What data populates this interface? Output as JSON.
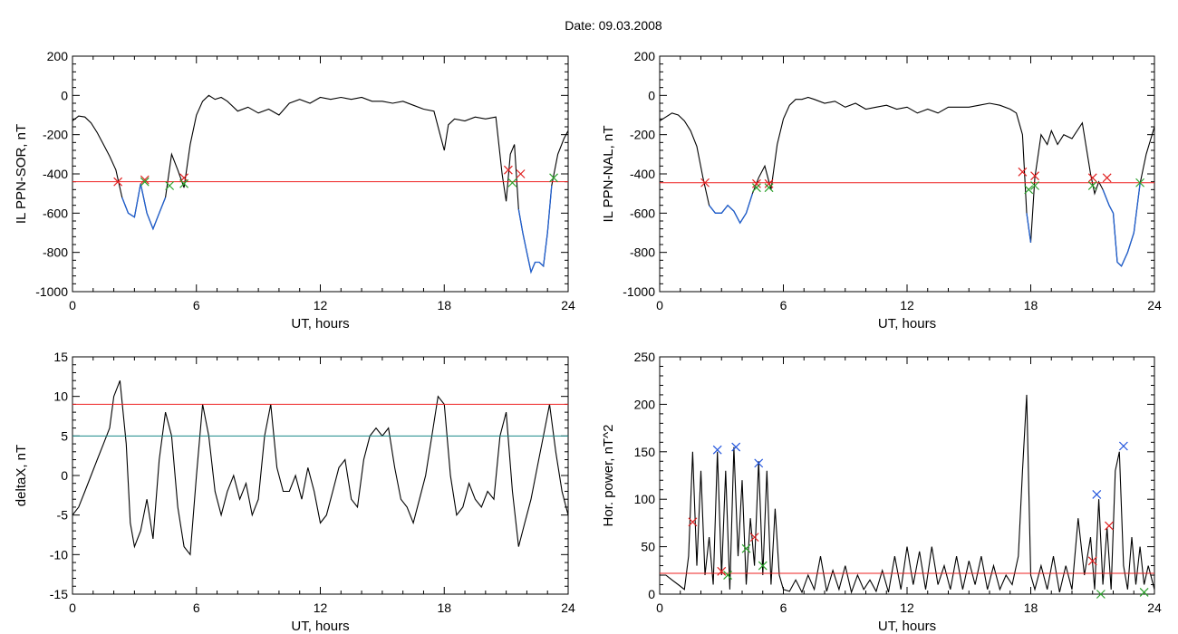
{
  "figure_title": "Date:  09.03.2008",
  "colors": {
    "axis": "#000000",
    "threshold_red": "#ee2222",
    "threshold_teal": "#1a8a8a",
    "highlight_blue": "#1f5fd0",
    "marker_red": "#e02020",
    "marker_green": "#2aa02a",
    "marker_blue": "#2255dd"
  },
  "chart_data": [
    {
      "id": "il-sor",
      "type": "line",
      "xlabel": "UT, hours",
      "ylabel": "IL PPN-SOR, nT",
      "xlim": [
        0,
        24
      ],
      "ylim": [
        -1000,
        200
      ],
      "xticks": [
        0,
        6,
        12,
        18,
        24
      ],
      "yticks": [
        -1000,
        -800,
        -600,
        -400,
        -200,
        0,
        200
      ],
      "threshold": {
        "y": -440,
        "color": "red"
      },
      "below_threshold_color": "blue",
      "series": [
        {
          "x": [
            0,
            0.3,
            0.6,
            0.9,
            1.2,
            1.5,
            1.8,
            2.1,
            2.4,
            2.7,
            3.0,
            3.3,
            3.6,
            3.9,
            4.2,
            4.5,
            4.8,
            5.1,
            5.4,
            5.7,
            6.0,
            6.3,
            6.6,
            6.9,
            7.2,
            7.5,
            8.0,
            8.5,
            9.0,
            9.5,
            10.0,
            10.5,
            11.0,
            11.5,
            12.0,
            12.5,
            13.0,
            13.5,
            14.0,
            14.5,
            15.0,
            15.5,
            16.0,
            16.5,
            17.0,
            17.5,
            17.8,
            18.0,
            18.2,
            18.5,
            19.0,
            19.5,
            20.0,
            20.5,
            20.8,
            21.0,
            21.2,
            21.4,
            21.6,
            21.8,
            22.0,
            22.2,
            22.4,
            22.6,
            22.8,
            23.0,
            23.2,
            23.5,
            23.8,
            24.0
          ],
          "y": [
            -130,
            -105,
            -110,
            -140,
            -190,
            -250,
            -310,
            -380,
            -520,
            -600,
            -620,
            -450,
            -600,
            -680,
            -600,
            -520,
            -300,
            -380,
            -470,
            -250,
            -100,
            -30,
            0,
            -20,
            -10,
            -30,
            -80,
            -60,
            -90,
            -70,
            -100,
            -40,
            -20,
            -40,
            -10,
            -20,
            -10,
            -20,
            -10,
            -30,
            -30,
            -40,
            -30,
            -50,
            -70,
            -80,
            -200,
            -280,
            -150,
            -120,
            -130,
            -110,
            -120,
            -110,
            -400,
            -540,
            -300,
            -250,
            -580,
            -700,
            -800,
            -900,
            -850,
            -850,
            -870,
            -700,
            -460,
            -300,
            -220,
            -180
          ]
        }
      ],
      "markers": [
        {
          "x": 2.2,
          "y": -440,
          "color": "red"
        },
        {
          "x": 3.5,
          "y": -430,
          "color": "red"
        },
        {
          "x": 3.5,
          "y": -440,
          "color": "green"
        },
        {
          "x": 4.7,
          "y": -460,
          "color": "green"
        },
        {
          "x": 5.4,
          "y": -420,
          "color": "red"
        },
        {
          "x": 5.4,
          "y": -450,
          "color": "green"
        },
        {
          "x": 21.1,
          "y": -380,
          "color": "red"
        },
        {
          "x": 21.3,
          "y": -445,
          "color": "green"
        },
        {
          "x": 21.7,
          "y": -400,
          "color": "red"
        },
        {
          "x": 23.3,
          "y": -420,
          "color": "green"
        }
      ]
    },
    {
      "id": "il-nal",
      "type": "line",
      "xlabel": "UT, hours",
      "ylabel": "IL PPN-NAL, nT",
      "xlim": [
        0,
        24
      ],
      "ylim": [
        -1000,
        200
      ],
      "xticks": [
        0,
        6,
        12,
        18,
        24
      ],
      "yticks": [
        -1000,
        -800,
        -600,
        -400,
        -200,
        0,
        200
      ],
      "threshold": {
        "y": -445,
        "color": "red"
      },
      "below_threshold_color": "blue",
      "series": [
        {
          "x": [
            0,
            0.3,
            0.6,
            0.9,
            1.2,
            1.5,
            1.8,
            2.1,
            2.4,
            2.7,
            3.0,
            3.3,
            3.6,
            3.9,
            4.2,
            4.5,
            4.8,
            5.1,
            5.4,
            5.7,
            6.0,
            6.3,
            6.6,
            6.9,
            7.2,
            7.5,
            8.0,
            8.5,
            9.0,
            9.5,
            10.0,
            10.5,
            11.0,
            11.5,
            12.0,
            12.5,
            13.0,
            13.5,
            14.0,
            14.5,
            15.0,
            15.5,
            16.0,
            16.5,
            17.0,
            17.3,
            17.6,
            17.8,
            18.0,
            18.2,
            18.5,
            18.8,
            19.0,
            19.3,
            19.6,
            20.0,
            20.5,
            20.9,
            21.1,
            21.3,
            21.5,
            21.8,
            22.0,
            22.2,
            22.4,
            22.7,
            23.0,
            23.3,
            23.6,
            24.0
          ],
          "y": [
            -130,
            -110,
            -90,
            -100,
            -130,
            -180,
            -260,
            -420,
            -560,
            -600,
            -600,
            -560,
            -590,
            -650,
            -600,
            -500,
            -420,
            -360,
            -480,
            -250,
            -120,
            -50,
            -20,
            -20,
            -10,
            -20,
            -40,
            -30,
            -60,
            -40,
            -70,
            -60,
            -50,
            -70,
            -60,
            -90,
            -70,
            -90,
            -60,
            -60,
            -60,
            -50,
            -40,
            -50,
            -70,
            -90,
            -200,
            -600,
            -750,
            -420,
            -200,
            -250,
            -180,
            -250,
            -200,
            -220,
            -140,
            -400,
            -500,
            -440,
            -480,
            -560,
            -600,
            -850,
            -870,
            -800,
            -700,
            -450,
            -300,
            -160
          ]
        }
      ],
      "markers": [
        {
          "x": 2.2,
          "y": -445,
          "color": "red"
        },
        {
          "x": 4.7,
          "y": -450,
          "color": "red"
        },
        {
          "x": 4.7,
          "y": -470,
          "color": "green"
        },
        {
          "x": 5.3,
          "y": -450,
          "color": "red"
        },
        {
          "x": 5.3,
          "y": -470,
          "color": "green"
        },
        {
          "x": 17.6,
          "y": -390,
          "color": "red"
        },
        {
          "x": 17.9,
          "y": -480,
          "color": "green"
        },
        {
          "x": 18.2,
          "y": -410,
          "color": "red"
        },
        {
          "x": 18.2,
          "y": -460,
          "color": "green"
        },
        {
          "x": 21.0,
          "y": -420,
          "color": "red"
        },
        {
          "x": 21.0,
          "y": -460,
          "color": "green"
        },
        {
          "x": 21.7,
          "y": -420,
          "color": "red"
        },
        {
          "x": 23.3,
          "y": -445,
          "color": "green"
        }
      ]
    },
    {
      "id": "deltax",
      "type": "line",
      "xlabel": "UT, hours",
      "ylabel": "deltaX, nT",
      "xlim": [
        0,
        24
      ],
      "ylim": [
        -15,
        15
      ],
      "xticks": [
        0,
        6,
        12,
        18,
        24
      ],
      "yticks": [
        -15,
        -10,
        -5,
        0,
        5,
        10,
        15
      ],
      "hlines": [
        {
          "y": 9,
          "color": "red"
        },
        {
          "y": 5,
          "color": "teal"
        }
      ],
      "series": [
        {
          "x": [
            0,
            0.3,
            0.6,
            0.9,
            1.2,
            1.5,
            1.8,
            2.0,
            2.3,
            2.6,
            2.8,
            3.0,
            3.3,
            3.6,
            3.9,
            4.2,
            4.5,
            4.8,
            5.1,
            5.4,
            5.7,
            6.0,
            6.3,
            6.6,
            6.9,
            7.2,
            7.5,
            7.8,
            8.1,
            8.4,
            8.7,
            9.0,
            9.3,
            9.6,
            9.9,
            10.2,
            10.5,
            10.8,
            11.1,
            11.4,
            11.7,
            12.0,
            12.3,
            12.6,
            12.9,
            13.2,
            13.5,
            13.8,
            14.1,
            14.4,
            14.7,
            15.0,
            15.3,
            15.6,
            15.9,
            16.2,
            16.5,
            16.8,
            17.1,
            17.4,
            17.7,
            18.0,
            18.3,
            18.6,
            18.9,
            19.2,
            19.5,
            19.8,
            20.1,
            20.4,
            20.7,
            21.0,
            21.3,
            21.6,
            21.9,
            22.2,
            22.5,
            22.8,
            23.1,
            23.4,
            23.7,
            24.0
          ],
          "y": [
            -5,
            -4,
            -2,
            0,
            2,
            4,
            6,
            10,
            12,
            4,
            -6,
            -9,
            -7,
            -3,
            -8,
            2,
            8,
            5,
            -4,
            -9,
            -10,
            0,
            9,
            5,
            -2,
            -5,
            -2,
            0,
            -3,
            -1,
            -5,
            -3,
            5,
            9,
            1,
            -2,
            -2,
            0,
            -3,
            1,
            -2,
            -6,
            -5,
            -2,
            1,
            2,
            -3,
            -4,
            2,
            5,
            6,
            5,
            6,
            1,
            -3,
            -4,
            -6,
            -3,
            0,
            5,
            10,
            9,
            0,
            -5,
            -4,
            -1,
            -3,
            -4,
            -2,
            -3,
            5,
            8,
            -2,
            -9,
            -6,
            -3,
            1,
            5,
            9,
            3,
            -2,
            -5
          ]
        }
      ]
    },
    {
      "id": "hor-power",
      "type": "line",
      "xlabel": "UT, hours",
      "ylabel": "Hor. power, nT^2",
      "xlim": [
        0,
        24
      ],
      "ylim": [
        0,
        250
      ],
      "xticks": [
        0,
        6,
        12,
        18,
        24
      ],
      "yticks": [
        0,
        50,
        100,
        150,
        200,
        250
      ],
      "threshold": {
        "y": 22,
        "color": "red"
      },
      "series": [
        {
          "x": [
            0,
            0.3,
            0.6,
            0.9,
            1.2,
            1.4,
            1.6,
            1.8,
            2.0,
            2.2,
            2.4,
            2.6,
            2.8,
            3.0,
            3.2,
            3.4,
            3.6,
            3.8,
            4.0,
            4.2,
            4.4,
            4.6,
            4.8,
            5.0,
            5.2,
            5.4,
            5.6,
            5.8,
            6.0,
            6.3,
            6.6,
            6.9,
            7.2,
            7.5,
            7.8,
            8.1,
            8.4,
            8.7,
            9.0,
            9.3,
            9.6,
            9.9,
            10.2,
            10.5,
            10.8,
            11.1,
            11.4,
            11.7,
            12.0,
            12.3,
            12.6,
            12.9,
            13.2,
            13.5,
            13.8,
            14.1,
            14.4,
            14.7,
            15.0,
            15.3,
            15.6,
            15.9,
            16.2,
            16.5,
            16.8,
            17.1,
            17.4,
            17.6,
            17.8,
            18.0,
            18.2,
            18.5,
            18.8,
            19.1,
            19.4,
            19.7,
            20.0,
            20.3,
            20.6,
            20.9,
            21.1,
            21.3,
            21.5,
            21.7,
            21.9,
            22.1,
            22.3,
            22.5,
            22.7,
            22.9,
            23.1,
            23.3,
            23.5,
            23.7,
            24.0
          ],
          "y": [
            20,
            20,
            15,
            10,
            5,
            40,
            150,
            30,
            130,
            20,
            60,
            10,
            150,
            20,
            130,
            5,
            155,
            40,
            120,
            10,
            80,
            30,
            140,
            20,
            130,
            10,
            90,
            20,
            5,
            3,
            15,
            2,
            20,
            5,
            40,
            3,
            25,
            5,
            30,
            2,
            20,
            5,
            15,
            3,
            25,
            2,
            40,
            5,
            50,
            10,
            45,
            5,
            50,
            10,
            30,
            5,
            40,
            5,
            35,
            10,
            40,
            5,
            30,
            5,
            20,
            10,
            40,
            130,
            210,
            20,
            5,
            30,
            5,
            40,
            2,
            30,
            5,
            80,
            20,
            60,
            5,
            100,
            10,
            70,
            5,
            130,
            150,
            30,
            5,
            60,
            10,
            50,
            10,
            30,
            5
          ]
        }
      ],
      "markers": [
        {
          "x": 1.6,
          "y": 76,
          "color": "red"
        },
        {
          "x": 2.8,
          "y": 152,
          "color": "blue"
        },
        {
          "x": 3.0,
          "y": 24,
          "color": "red"
        },
        {
          "x": 3.3,
          "y": 20,
          "color": "green"
        },
        {
          "x": 3.7,
          "y": 155,
          "color": "blue"
        },
        {
          "x": 4.2,
          "y": 48,
          "color": "green"
        },
        {
          "x": 4.6,
          "y": 60,
          "color": "red"
        },
        {
          "x": 4.8,
          "y": 138,
          "color": "blue"
        },
        {
          "x": 5.0,
          "y": 30,
          "color": "green"
        },
        {
          "x": 21.0,
          "y": 35,
          "color": "red"
        },
        {
          "x": 21.2,
          "y": 105,
          "color": "blue"
        },
        {
          "x": 21.4,
          "y": 0,
          "color": "green"
        },
        {
          "x": 21.8,
          "y": 72,
          "color": "red"
        },
        {
          "x": 22.5,
          "y": 156,
          "color": "blue"
        },
        {
          "x": 23.5,
          "y": 2,
          "color": "green"
        }
      ]
    }
  ]
}
